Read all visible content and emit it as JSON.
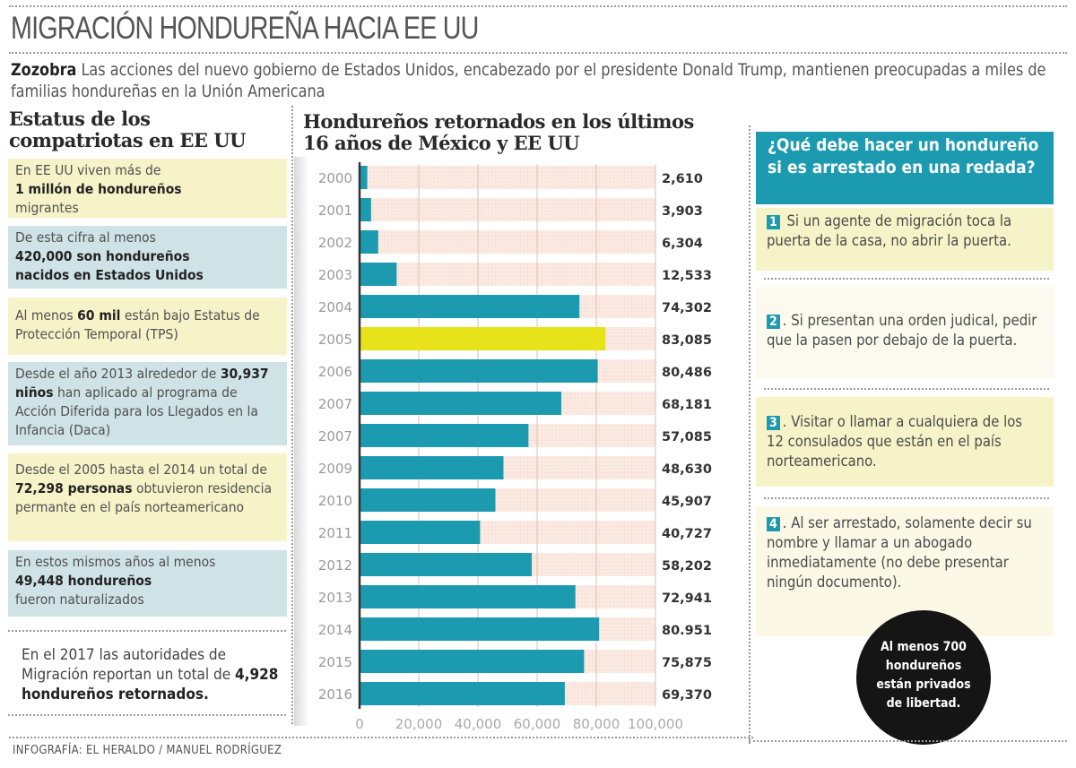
{
  "title": "MIGRACIÓN HONDUREÑA HACIA EE UU",
  "lead": {
    "bold": "Zozobra",
    "text": " Las acciones del nuevo gobierno de Estados Unidos, encabezado por el presidente Donald Trump, mantienen preocupadas a miles de familias hondureñas en la Unión Americana"
  },
  "left": {
    "heading": "Estatus de los compatriotas en EE UU",
    "boxes": [
      {
        "pre": "En EE UU viven más de ",
        "bold": "1 millón de hondureños",
        "post": " migrantes"
      },
      {
        "pre": "De esta cifra al menos ",
        "bold": "420,000 son hondureños nacidos en Estados Unidos",
        "post": ""
      },
      {
        "pre": "Al menos ",
        "bold": "60 mil",
        "post": " están bajo Estatus de Protección Temporal (TPS)"
      },
      {
        "pre": "Desde el año 2013 alrededor de ",
        "bold": "30,937 niños",
        "post": " han aplicado al programa de Acción Diferida para los Llegados en la Infancia (Daca)"
      },
      {
        "pre": "Desde el 2005 hasta el 2014 un total de ",
        "bold": "72,298 personas",
        "post": " obtuvieron residencia permante en el país norteamericano"
      },
      {
        "pre": "En estos mismos años al menos ",
        "bold": "49,448 hondureños",
        "post": " fueron naturalizados"
      }
    ],
    "note": {
      "pre": "En el 2017 las autoridades de Migración reportan un total de ",
      "bold": "4,928 hondureños retornados."
    }
  },
  "chart_data": {
    "type": "bar",
    "orientation": "horizontal",
    "title": "Hondureños retornados en los últimos 16 años de México y EE UU",
    "categories": [
      "2000",
      "2001",
      "2002",
      "2003",
      "2004",
      "2005",
      "2006",
      "2007",
      "2007",
      "2009",
      "2010",
      "2011",
      "2012",
      "2013",
      "2014",
      "2015",
      "2016"
    ],
    "values": [
      2610,
      3903,
      6304,
      12533,
      74302,
      83085,
      80486,
      68181,
      57085,
      48630,
      45907,
      40727,
      58202,
      72941,
      80951,
      75875,
      69370
    ],
    "value_labels": [
      "2,610",
      "3,903",
      "6,304",
      "12,533",
      "74,302",
      "83,085",
      "80,486",
      "68,181",
      "57,085",
      "48,630",
      "45,907",
      "40,727",
      "58,202",
      "72,941",
      "80.951",
      "75,875",
      "69,370"
    ],
    "highlight_category_index": 5,
    "xlim": [
      0,
      100000
    ],
    "xticks": [
      0,
      20000,
      40000,
      60000,
      80000,
      100000
    ],
    "xtick_labels": [
      "0",
      "20,000",
      "40,000",
      "60,000",
      "80,000",
      "100,000"
    ],
    "grid": true,
    "colors": {
      "bar": "#1c9bb0",
      "highlight": "#e8e21a",
      "grid_bg": "#fbebe3"
    }
  },
  "right": {
    "heading": "¿Qué debe hacer un hondureño si es arrestado en una redada?",
    "steps": [
      {
        "num": "1",
        "text": "Si un agente de migración toca la puerta de la casa, no abrir la puerta."
      },
      {
        "num": "2",
        "text": ". Si presentan una orden judical, pedir que la pasen por debajo de la puerta."
      },
      {
        "num": "3",
        "text": ". Visitar o llamar a cualquiera de los 12 consulados que están en el país norteamericano."
      },
      {
        "num": "4",
        "text": ". Al ser arrestado, solamente decir su nombre y llamar a un abogado inmediatamente (no debe presentar ningún documento)."
      }
    ],
    "callout": "Al menos 700 hondureños están privados de libertad."
  },
  "credit": "INFOGRAFÍA: EL HERALDO / MANUEL RODRÍGUEZ"
}
